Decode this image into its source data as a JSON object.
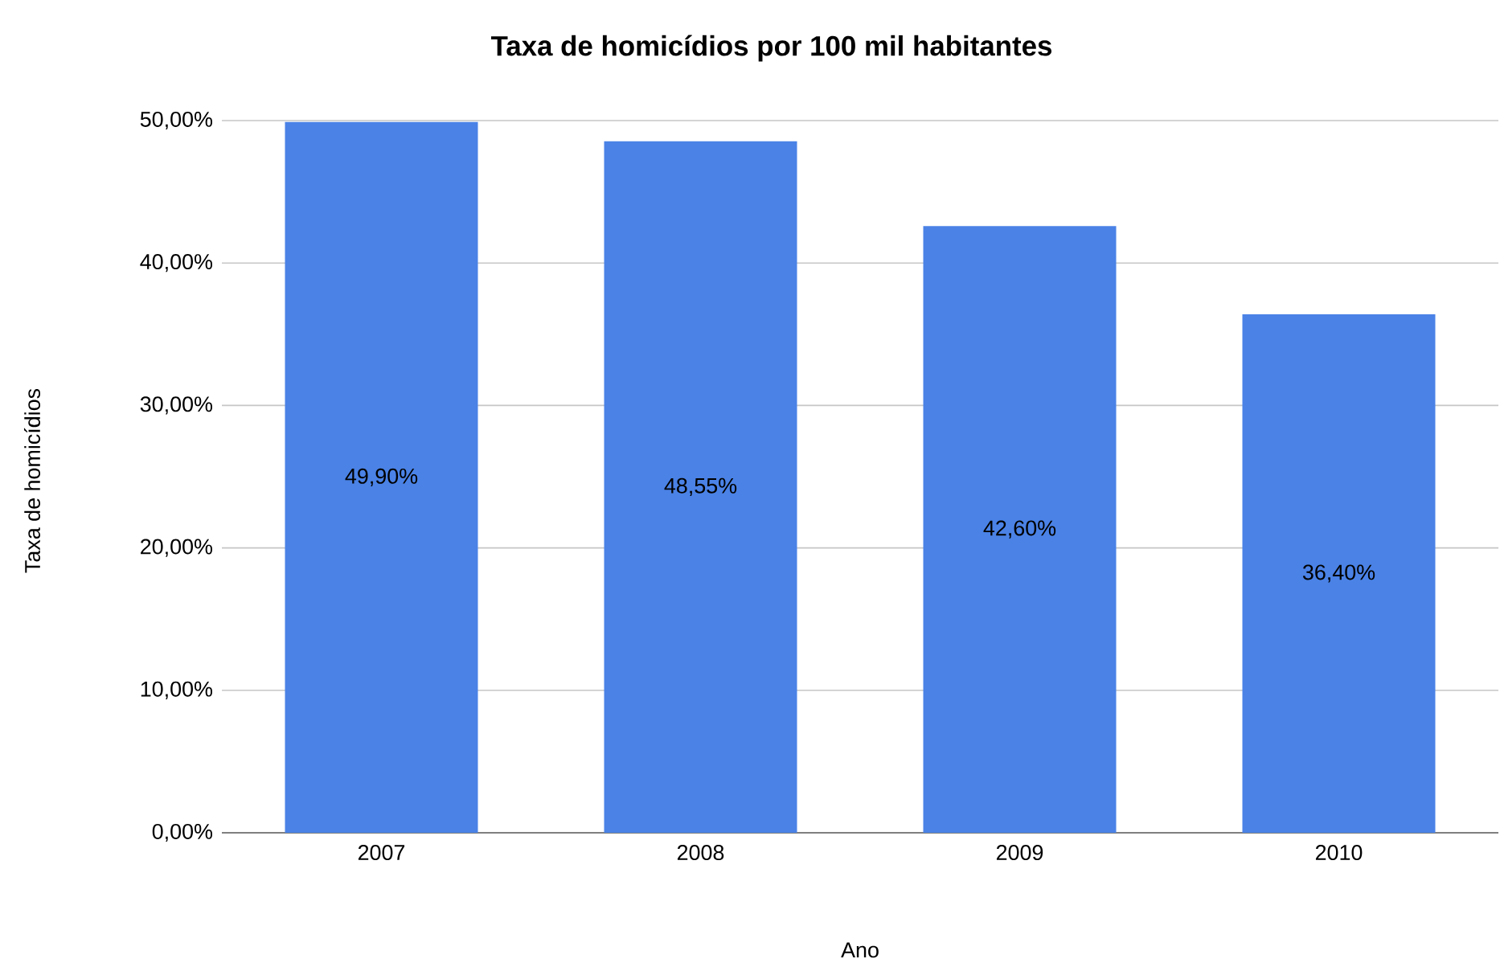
{
  "chart_data": {
    "type": "bar",
    "title": "Taxa de homicídios por 100 mil habitantes",
    "xlabel": "Ano",
    "ylabel": "Taxa de homicídios",
    "categories": [
      "2007",
      "2008",
      "2009",
      "2010"
    ],
    "values": [
      49.9,
      48.55,
      42.6,
      36.4
    ],
    "value_labels": [
      "49,90%",
      "48,55%",
      "42,60%",
      "36,40%"
    ],
    "color": "#4a82e6",
    "ylim": [
      0,
      50
    ],
    "yticks": [
      {
        "value": 0,
        "label": "0,00%"
      },
      {
        "value": 10,
        "label": "10,00%"
      },
      {
        "value": 20,
        "label": "20,00%"
      },
      {
        "value": 30,
        "label": "30,00%"
      },
      {
        "value": 40,
        "label": "40,00%"
      },
      {
        "value": 50,
        "label": "50,00%"
      }
    ],
    "grid": "y"
  }
}
